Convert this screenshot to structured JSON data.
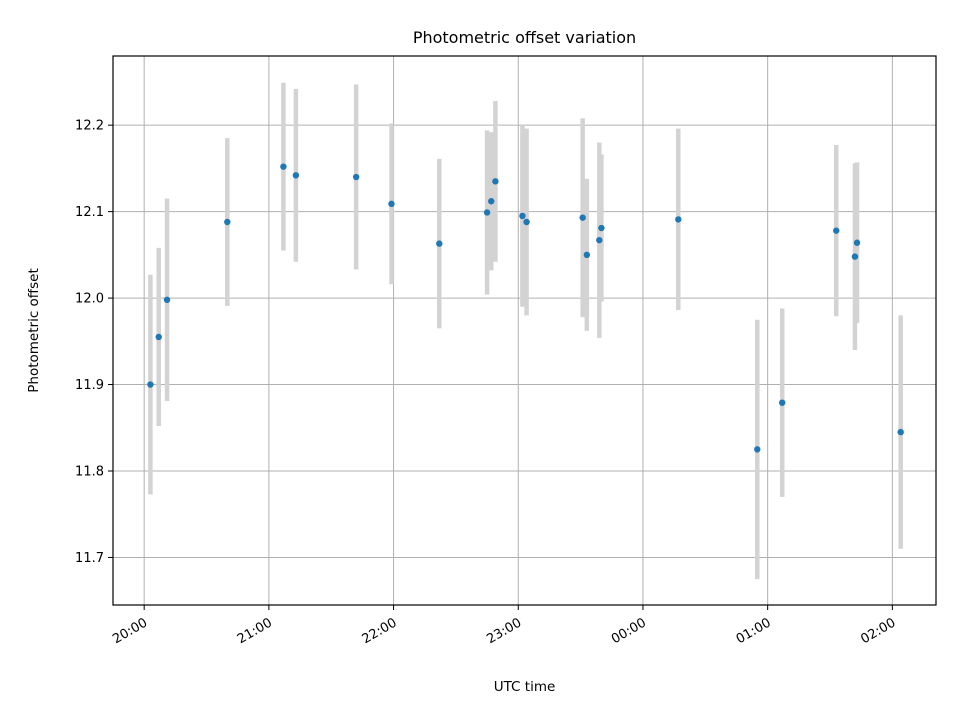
{
  "chart_data": {
    "type": "scatter",
    "title": "Photometric offset variation",
    "xlabel": "UTC time",
    "ylabel": "Photometric offset",
    "grid": true,
    "legend": "none",
    "x_unit": "UTC clock time (HH:MM); points after 00:00 fall on the following day",
    "xlim": [
      "19:45",
      "02:21"
    ],
    "ylim": [
      11.645,
      12.28
    ],
    "xticks": [
      "20:00",
      "21:00",
      "22:00",
      "23:00",
      "00:00",
      "01:00",
      "02:00"
    ],
    "yticks": [
      "11.7",
      "11.8",
      "11.9",
      "12.0",
      "12.1",
      "12.2"
    ],
    "colors": {
      "point": "#1f77b4",
      "errorbar": "#d3d3d3",
      "grid": "#b0b0b0"
    },
    "series": [
      {
        "points": [
          {
            "x": "20:03",
            "y": 11.9,
            "err": 0.127
          },
          {
            "x": "20:07",
            "y": 11.955,
            "err": 0.103
          },
          {
            "x": "20:11",
            "y": 11.998,
            "err": 0.117
          },
          {
            "x": "20:40",
            "y": 12.088,
            "err": 0.097
          },
          {
            "x": "21:07",
            "y": 12.152,
            "err": 0.097
          },
          {
            "x": "21:13",
            "y": 12.142,
            "err": 0.1
          },
          {
            "x": "21:42",
            "y": 12.14,
            "err": 0.107
          },
          {
            "x": "21:59",
            "y": 12.109,
            "err": 0.093
          },
          {
            "x": "22:22",
            "y": 12.063,
            "err": 0.098
          },
          {
            "x": "22:45",
            "y": 12.099,
            "err": 0.095
          },
          {
            "x": "22:47",
            "y": 12.112,
            "err": 0.08
          },
          {
            "x": "22:49",
            "y": 12.135,
            "err": 0.093
          },
          {
            "x": "23:02",
            "y": 12.095,
            "err": 0.105
          },
          {
            "x": "23:04",
            "y": 12.088,
            "err": 0.108
          },
          {
            "x": "23:31",
            "y": 12.093,
            "err": 0.115
          },
          {
            "x": "23:33",
            "y": 12.05,
            "err": 0.088
          },
          {
            "x": "23:39",
            "y": 12.067,
            "err": 0.113
          },
          {
            "x": "23:40",
            "y": 12.081,
            "err": 0.085
          },
          {
            "x": "00:17",
            "y": 12.091,
            "err": 0.105
          },
          {
            "x": "00:55",
            "y": 11.825,
            "err": 0.15
          },
          {
            "x": "01:07",
            "y": 11.879,
            "err": 0.109
          },
          {
            "x": "01:33",
            "y": 12.078,
            "err": 0.099
          },
          {
            "x": "01:42",
            "y": 12.048,
            "err": 0.108
          },
          {
            "x": "01:43",
            "y": 12.064,
            "err": 0.093
          },
          {
            "x": "02:04",
            "y": 11.845,
            "err": 0.135
          }
        ]
      }
    ]
  }
}
